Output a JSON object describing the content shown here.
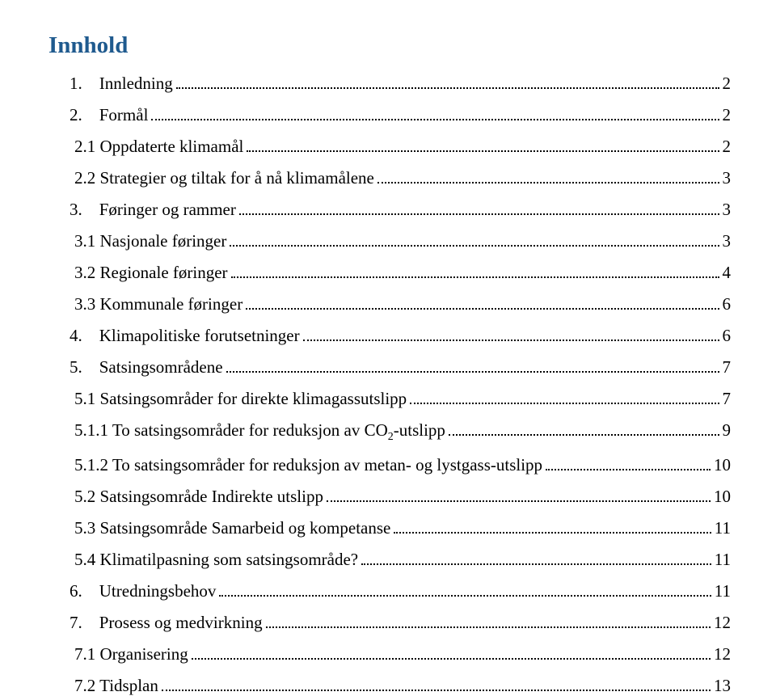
{
  "title_color": "#1f5a8e",
  "text_color": "#000000",
  "background_color": "#ffffff",
  "title": "Innhold",
  "entries": [
    {
      "level": "lvl1a",
      "label": "1. Innledning",
      "page": "2"
    },
    {
      "level": "lvl1a",
      "label": "2. Formål",
      "page": "2"
    },
    {
      "level": "lvl2",
      "label": "2.1 Oppdaterte klimamål",
      "page": "2"
    },
    {
      "level": "lvl2",
      "label": "2.2 Strategier og tiltak for å nå klimamålene",
      "page": "3"
    },
    {
      "level": "lvl1a",
      "label": "3. Føringer og rammer",
      "page": "3"
    },
    {
      "level": "lvl2",
      "label": "3.1 Nasjonale føringer",
      "page": "3"
    },
    {
      "level": "lvl2",
      "label": "3.2 Regionale føringer",
      "page": "4"
    },
    {
      "level": "lvl2",
      "label": "3.3 Kommunale føringer",
      "page": "6"
    },
    {
      "level": "lvl1a",
      "label": "4. Klimapolitiske forutsetninger",
      "page": "6"
    },
    {
      "level": "lvl1a",
      "label": "5. Satsingsområdene",
      "page": "7"
    },
    {
      "level": "lvl2",
      "label": "5.1 Satsingsområder for direkte klimagassutslipp",
      "page": "7"
    },
    {
      "level": "lvl3",
      "label_html": "5.1.1 To satsingsområder for reduksjon av CO<span class=\"sub\">2</span>-utslipp",
      "page": "9"
    },
    {
      "level": "lvl3",
      "label": "5.1.2 To satsingsområder for reduksjon av metan- og lystgass-utslipp",
      "page": "10"
    },
    {
      "level": "lvl2",
      "label": "5.2 Satsingsområde Indirekte utslipp",
      "page": "10"
    },
    {
      "level": "lvl2",
      "label": "5.3 Satsingsområde Samarbeid og kompetanse",
      "page": "11"
    },
    {
      "level": "lvl2",
      "label": "5.4 Klimatilpasning som satsingsområde?",
      "page": "11"
    },
    {
      "level": "lvl1a",
      "label": "6. Utredningsbehov",
      "page": "11"
    },
    {
      "level": "lvl1a",
      "label": "7. Prosess og medvirkning",
      "page": "12"
    },
    {
      "level": "lvl2",
      "label": "7.1 Organisering",
      "page": "12"
    },
    {
      "level": "lvl2",
      "label": "7.2 Tidsplan",
      "page": "13"
    }
  ]
}
